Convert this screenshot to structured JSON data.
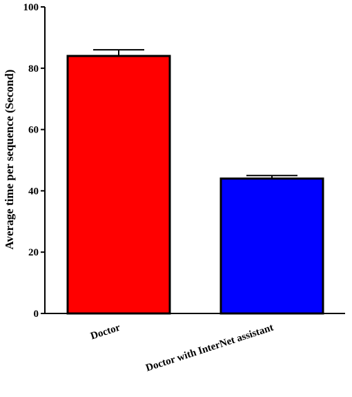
{
  "chart_data": {
    "type": "bar",
    "title": "",
    "xlabel": "",
    "ylabel": "Average time per sequence (Second)",
    "ylim": [
      0,
      100
    ],
    "yticks": [
      0,
      20,
      40,
      60,
      80,
      100
    ],
    "grid": false,
    "legend": "none",
    "categories": [
      "Doctor",
      "Doctor with InterNet assistant"
    ],
    "values": [
      84,
      44
    ],
    "error": [
      2,
      1
    ],
    "colors": [
      "#ff0000",
      "#0000ff"
    ]
  }
}
